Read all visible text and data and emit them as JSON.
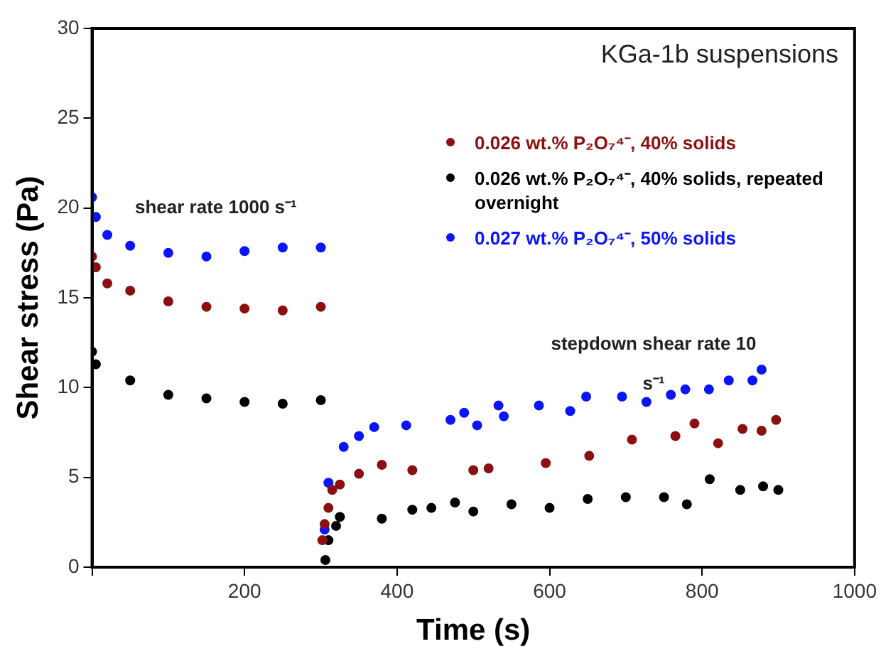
{
  "chart_data": {
    "type": "scatter",
    "title": "KGa-1b suspensions",
    "xlabel": "Time (s)",
    "ylabel": "Shear stress (Pa)",
    "xlim": [
      0,
      1000
    ],
    "ylim": [
      0,
      30
    ],
    "xticks": [
      {
        "value": 0,
        "label": null
      },
      200,
      400,
      600,
      800,
      1000
    ],
    "yticks": [
      0,
      5,
      10,
      15,
      20,
      25,
      30
    ],
    "grid": false,
    "legend": "top right",
    "marker": "circle",
    "annotations": [
      "shear rate 1000 s⁻¹",
      "stepdown shear rate 10 s⁻¹"
    ],
    "series": [
      {
        "name": "0.026 wt.% P₂O₇⁴⁻, 40% solids",
        "color": "#8b1010",
        "x": [
          0,
          5,
          20,
          50,
          100,
          150,
          200,
          250,
          300,
          302,
          305,
          310,
          315,
          325,
          350,
          380,
          420,
          500,
          520,
          595,
          652,
          708,
          765,
          790,
          821,
          853,
          878,
          897
        ],
        "values": [
          17.3,
          16.7,
          15.8,
          15.4,
          14.8,
          14.5,
          14.4,
          14.3,
          14.5,
          1.5,
          2.4,
          3.3,
          4.3,
          4.6,
          5.2,
          5.7,
          5.4,
          5.4,
          5.5,
          5.8,
          6.2,
          7.1,
          7.3,
          8.0,
          6.9,
          7.7,
          7.6,
          8.2
        ]
      },
      {
        "name": "0.026 wt.% P₂O₇⁴⁻, 40% solids, repeated overnight",
        "color": "#000000",
        "x": [
          0,
          5,
          50,
          100,
          150,
          200,
          250,
          300,
          306,
          310,
          320,
          325,
          380,
          420,
          445,
          476,
          500,
          550,
          600,
          650,
          700,
          750,
          780,
          810,
          850,
          880,
          900
        ],
        "values": [
          12.0,
          11.3,
          10.4,
          9.6,
          9.4,
          9.2,
          9.1,
          9.3,
          0.4,
          1.5,
          2.3,
          2.8,
          2.7,
          3.2,
          3.3,
          3.6,
          3.1,
          3.5,
          3.3,
          3.8,
          3.9,
          3.9,
          3.5,
          4.9,
          4.3,
          4.5,
          4.3
        ]
      },
      {
        "name": "0.027 wt.% P₂O₇⁴⁻, 50% solids",
        "color": "#0a14ff",
        "x": [
          0,
          5,
          20,
          50,
          100,
          150,
          200,
          250,
          300,
          305,
          310,
          330,
          350,
          370,
          412,
          470,
          488,
          505,
          533,
          540,
          586,
          627,
          648,
          695,
          727,
          759,
          778,
          809,
          835,
          866,
          878
        ],
        "values": [
          20.6,
          19.5,
          18.5,
          17.9,
          17.5,
          17.3,
          17.6,
          17.8,
          17.8,
          2.1,
          4.7,
          6.7,
          7.3,
          7.8,
          7.9,
          8.2,
          8.6,
          7.9,
          9.0,
          8.4,
          9.0,
          8.7,
          9.5,
          9.5,
          9.2,
          9.6,
          9.9,
          9.9,
          10.4,
          10.4,
          11.0
        ]
      }
    ]
  }
}
